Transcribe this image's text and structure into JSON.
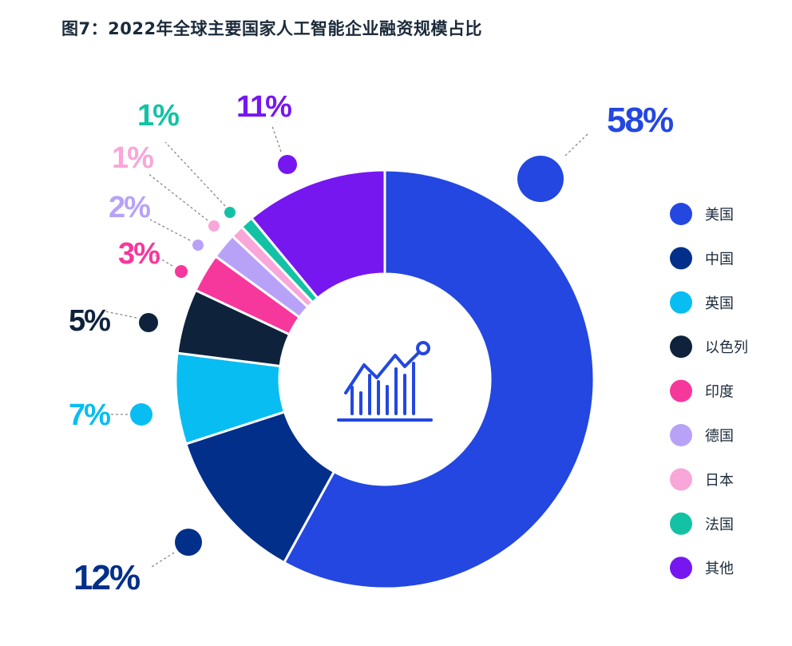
{
  "title": "图7：2022年全球主要国家人工智能企业融资规模占比",
  "chart_data": {
    "type": "pie",
    "donut": true,
    "center_icon": "line-bar-chart-icon",
    "legend_position": "right",
    "series": [
      {
        "name": "美国",
        "value": 58,
        "label": "58%",
        "color": "#2347e0"
      },
      {
        "name": "中国",
        "value": 12,
        "label": "12%",
        "color": "#012f8a"
      },
      {
        "name": "英国",
        "value": 7,
        "label": "7%",
        "color": "#08bdf2"
      },
      {
        "name": "以色列",
        "value": 5,
        "label": "5%",
        "color": "#0e223b"
      },
      {
        "name": "印度",
        "value": 3,
        "label": "3%",
        "color": "#f6389d"
      },
      {
        "name": "德国",
        "value": 2,
        "label": "2%",
        "color": "#b8a2f8"
      },
      {
        "name": "日本",
        "value": 1,
        "label": "1%",
        "color": "#f9a6d9"
      },
      {
        "name": "法国",
        "value": 1,
        "label": "1%",
        "color": "#13c2a4"
      },
      {
        "name": "其他",
        "value": 11,
        "label": "11%",
        "color": "#7617f0"
      }
    ]
  }
}
